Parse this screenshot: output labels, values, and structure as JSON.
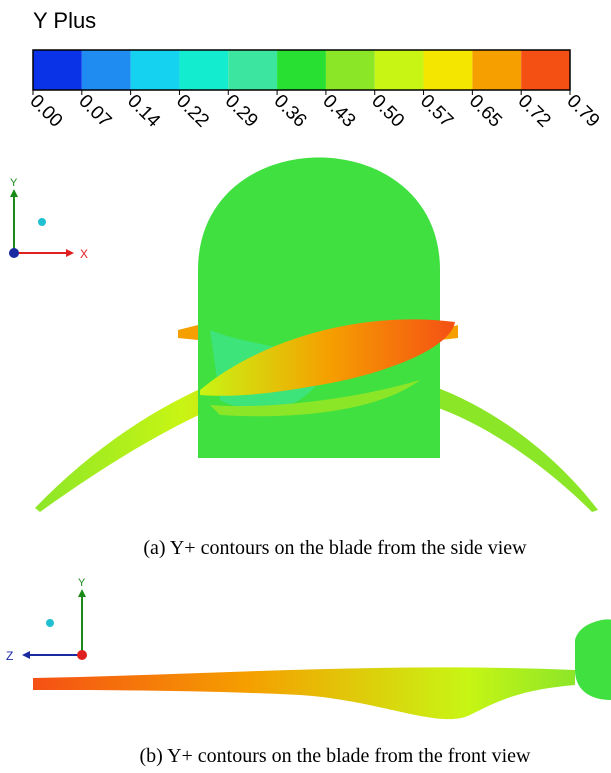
{
  "legend": {
    "title": "Y Plus",
    "colors": [
      "#0a32e6",
      "#1e8cf0",
      "#14d2f0",
      "#14ecd0",
      "#3ce6a0",
      "#28e032",
      "#8ce628",
      "#c8f514",
      "#f5e600",
      "#f5a000",
      "#f55014"
    ],
    "ticks": [
      "0.00",
      "0.07",
      "0.14",
      "0.22",
      "0.29",
      "0.36",
      "0.43",
      "0.50",
      "0.57",
      "0.65",
      "0.72",
      "0.79"
    ]
  },
  "view_a": {
    "axes": [
      "Y",
      "X"
    ],
    "caption": "(a) Y+ contours on the blade from the side view"
  },
  "view_b": {
    "axes": [
      "Y",
      "Z"
    ],
    "caption": "(b) Y+ contours on the blade from the front view"
  }
}
